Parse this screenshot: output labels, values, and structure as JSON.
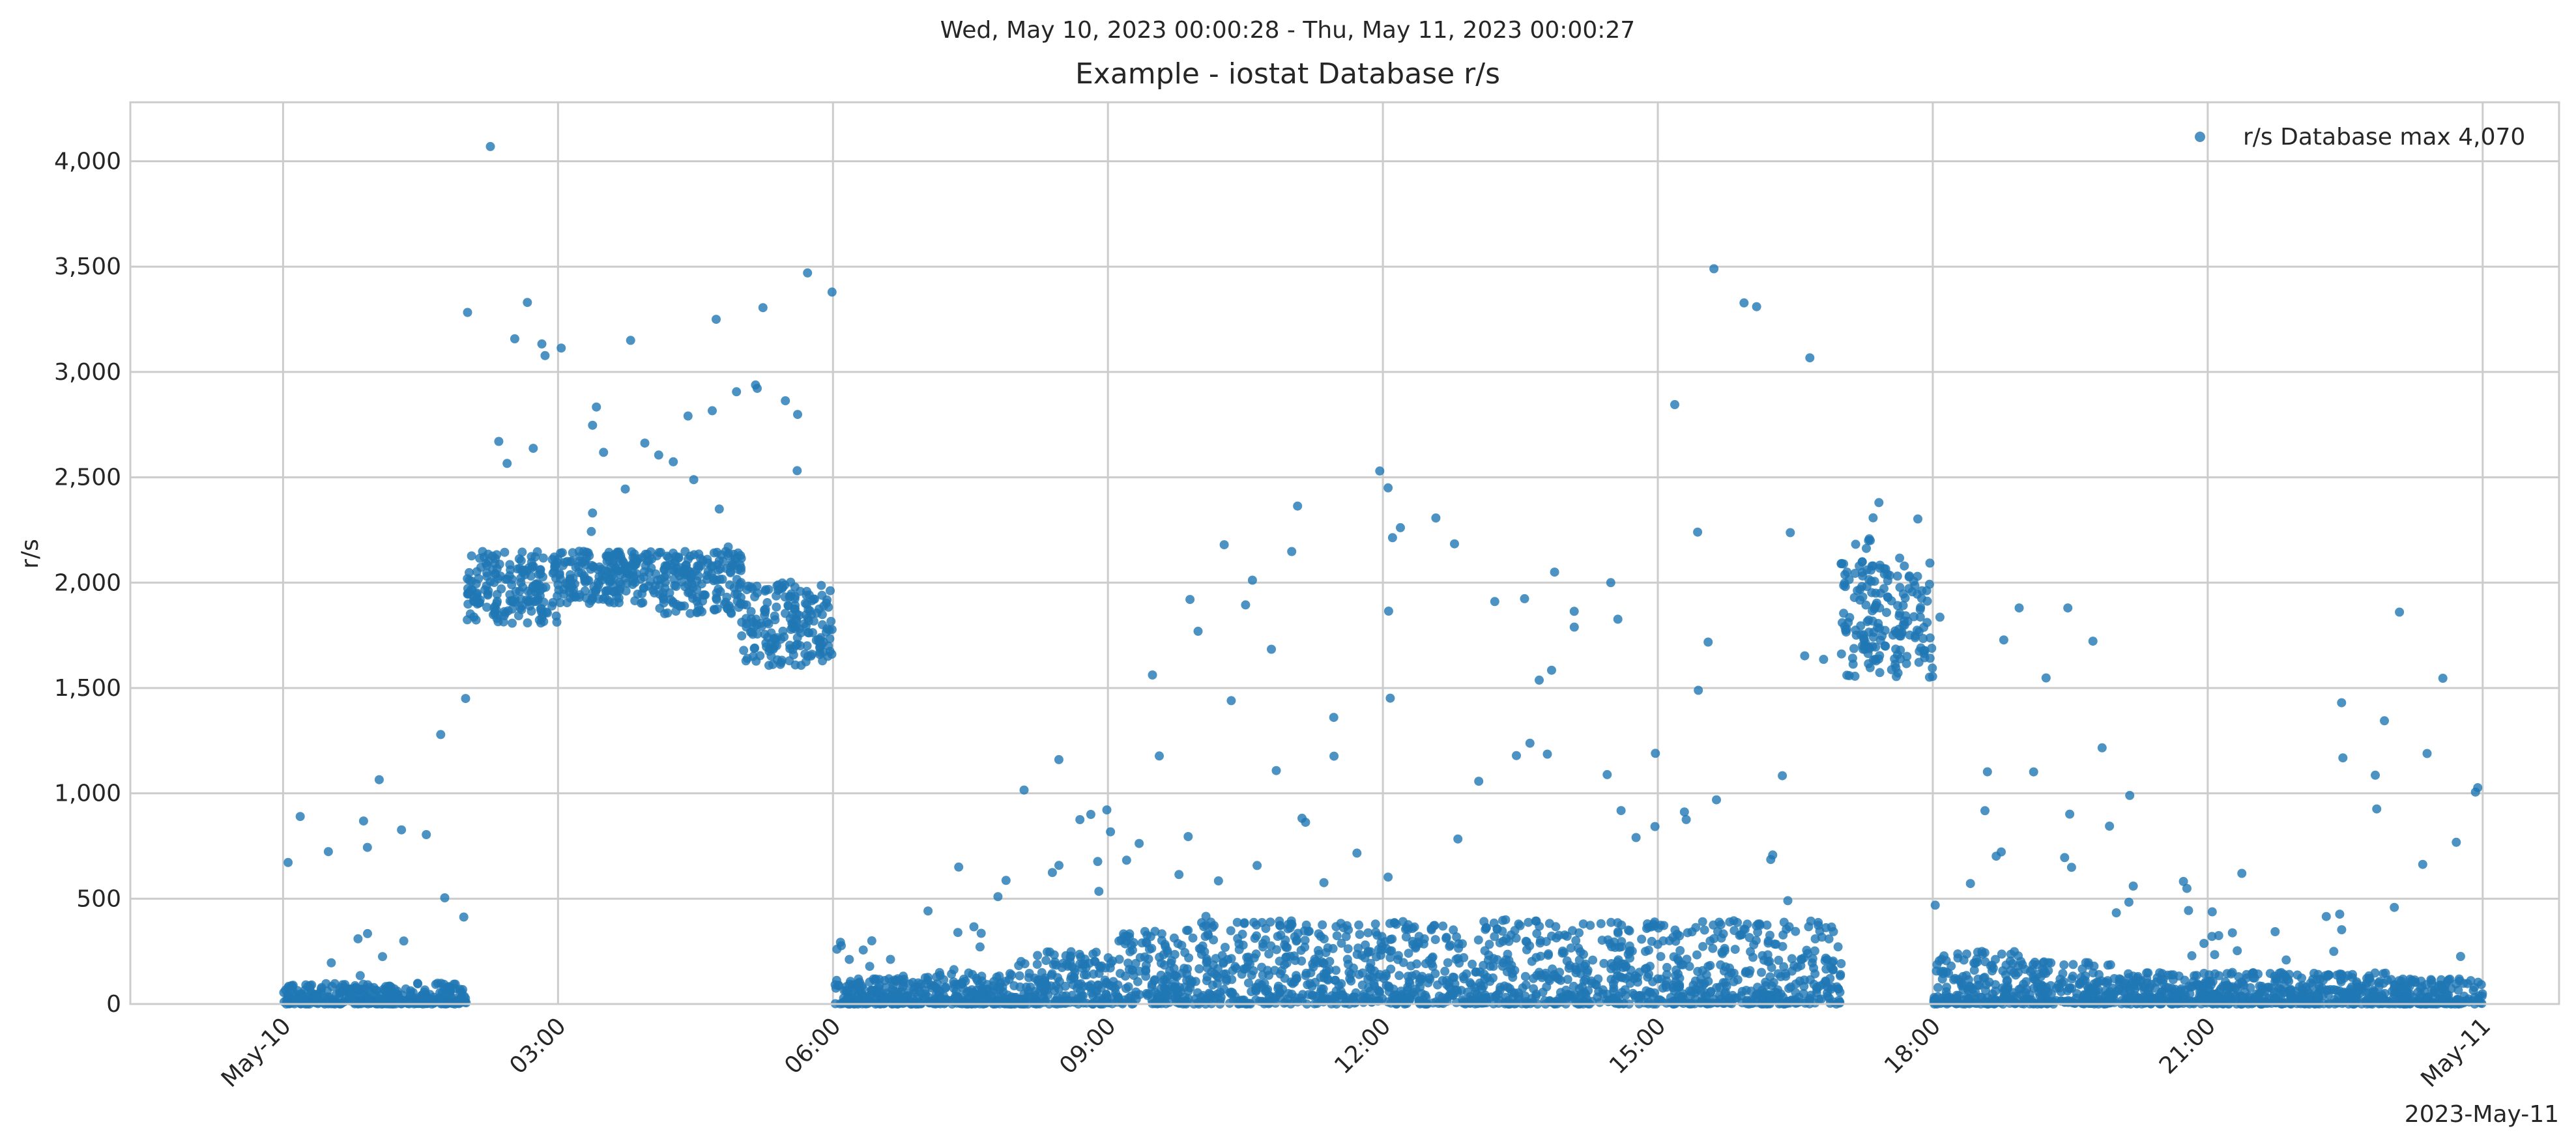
{
  "chart_data": {
    "type": "scatter",
    "suptitle": "Wed, May 10, 2023 00:00:28 - Thu, May 11, 2023 00:00:27",
    "title": "Example - iostat Database r/s",
    "xlabel": "",
    "ylabel": "r/s",
    "x_offset_label": "2023-May-11",
    "xlim": [
      "2023-05-09T22:20:00",
      "2023-05-11T00:50:00"
    ],
    "ylim": [
      0,
      4280
    ],
    "x_tick_labels": [
      "May-10",
      "03:00",
      "06:00",
      "09:00",
      "12:00",
      "15:00",
      "18:00",
      "21:00",
      "May-11"
    ],
    "x_tick_times": [
      "2023-05-10T00:00",
      "2023-05-10T03:00",
      "2023-05-10T06:00",
      "2023-05-10T09:00",
      "2023-05-10T12:00",
      "2023-05-10T15:00",
      "2023-05-10T18:00",
      "2023-05-10T21:00",
      "2023-05-11T00:00"
    ],
    "y_ticks": [
      0,
      500,
      1000,
      1500,
      2000,
      2500,
      3000,
      3500,
      4000
    ],
    "y_tick_labels": [
      "0",
      "500",
      "1,000",
      "1,500",
      "2,000",
      "2,500",
      "3,000",
      "3,500",
      "4,000"
    ],
    "grid": true,
    "legend_position": "top-right",
    "series": [
      {
        "name": "r/s Database max 4,070",
        "color": "#1f77b4",
        "marker": "circle",
        "points_hourly_summary": [
          {
            "hour": "00:00",
            "typical_range": [
              0,
              100
            ],
            "peak": 890
          },
          {
            "hour": "01:00",
            "typical_range": [
              0,
              100
            ],
            "peak": 1450
          },
          {
            "hour": "02:00",
            "typical_range": [
              1800,
              2150
            ],
            "peak": 4070
          },
          {
            "hour": "03:00",
            "typical_range": [
              1900,
              2150
            ],
            "peak": 3150
          },
          {
            "hour": "04:00",
            "typical_range": [
              1850,
              2150
            ],
            "peak": 3250
          },
          {
            "hour": "05:00",
            "typical_range": [
              1600,
              2000
            ],
            "peak": 3470
          },
          {
            "hour": "06:00",
            "typical_range": [
              0,
              120
            ],
            "peak": 300
          },
          {
            "hour": "07:00",
            "typical_range": [
              0,
              150
            ],
            "peak": 650
          },
          {
            "hour": "08:00",
            "typical_range": [
              0,
              250
            ],
            "peak": 1160
          },
          {
            "hour": "09:00",
            "typical_range": [
              0,
              350
            ],
            "peak": 1920
          },
          {
            "hour": "10:00",
            "typical_range": [
              0,
              400
            ],
            "peak": 2180
          },
          {
            "hour": "11:00",
            "typical_range": [
              0,
              400
            ],
            "peak": 2530
          },
          {
            "hour": "12:00",
            "typical_range": [
              0,
              400
            ],
            "peak": 2450
          },
          {
            "hour": "13:00",
            "typical_range": [
              0,
              400
            ],
            "peak": 2050
          },
          {
            "hour": "14:00",
            "typical_range": [
              0,
              400
            ],
            "peak": 2000
          },
          {
            "hour": "15:00",
            "typical_range": [
              0,
              400
            ],
            "peak": 3490
          },
          {
            "hour": "16:00",
            "typical_range": [
              0,
              400
            ],
            "peak": 3310
          },
          {
            "hour": "17:00",
            "typical_range": [
              1550,
              2100
            ],
            "peak": 2380
          },
          {
            "hour": "18:00",
            "typical_range": [
              0,
              250
            ],
            "peak": 1880
          },
          {
            "hour": "19:00",
            "typical_range": [
              0,
              200
            ],
            "peak": 1880
          },
          {
            "hour": "20:00",
            "typical_range": [
              0,
              150
            ],
            "peak": 990
          },
          {
            "hour": "21:00",
            "typical_range": [
              0,
              150
            ],
            "peak": 620
          },
          {
            "hour": "22:00",
            "typical_range": [
              0,
              150
            ],
            "peak": 1430
          },
          {
            "hour": "23:00",
            "typical_range": [
              0,
              120
            ],
            "peak": 1860
          }
        ]
      }
    ]
  }
}
